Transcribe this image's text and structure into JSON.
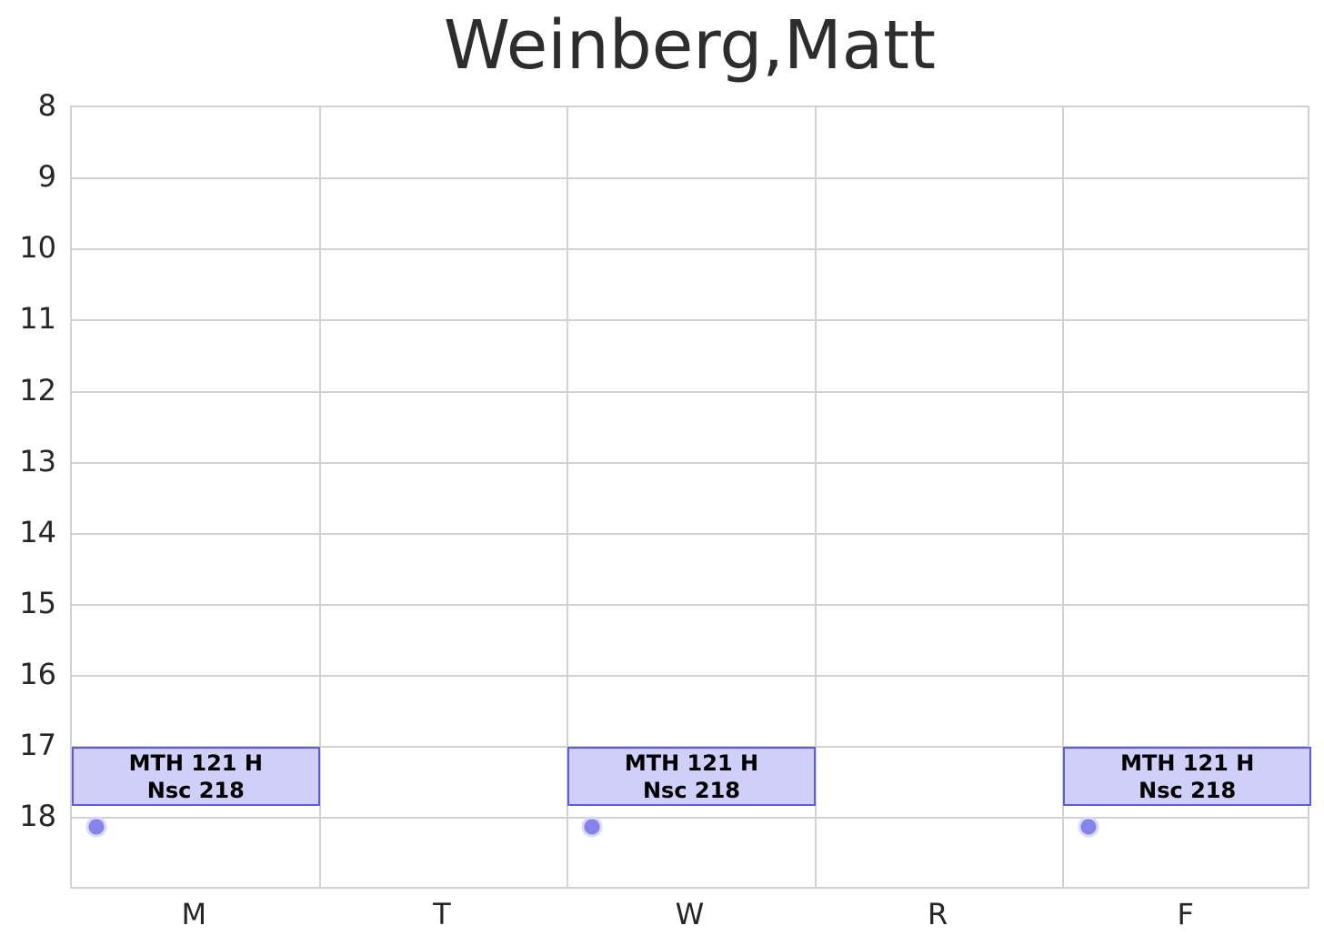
{
  "chart_data": {
    "type": "bar",
    "subtype": "weekly-schedule-gantt",
    "title": "Weinberg,Matt",
    "x_categories": [
      "M",
      "T",
      "W",
      "R",
      "F"
    ],
    "y_ticks": [
      "8",
      "9",
      "10",
      "11",
      "12",
      "13",
      "14",
      "15",
      "16",
      "17",
      "18"
    ],
    "y_range": [
      8,
      19
    ],
    "y_inverted": true,
    "y_unit": "hour of day (24h)",
    "grid": true,
    "legend": "none",
    "events": [
      {
        "day": "M",
        "course": "MTH 121 H",
        "room": "Nsc 218",
        "start": 17.0,
        "end": 17.83
      },
      {
        "day": "W",
        "course": "MTH 121 H",
        "room": "Nsc 218",
        "start": 17.0,
        "end": 17.83
      },
      {
        "day": "F",
        "course": "MTH 121 H",
        "room": "Nsc 218",
        "start": 17.0,
        "end": 17.83
      }
    ],
    "markers": [
      {
        "day": "M",
        "hour": 18.12
      },
      {
        "day": "W",
        "hour": 18.12
      },
      {
        "day": "F",
        "hour": 18.12
      }
    ],
    "colors": {
      "event_fill": "#cfcff9",
      "event_border": "#5b5be4",
      "marker_fill": "#8484ea",
      "marker_ring": "#d9d9f8",
      "grid": "#d2d2d2",
      "text": "#262626",
      "title": "#2d2d2d",
      "background": "#ffffff"
    }
  }
}
